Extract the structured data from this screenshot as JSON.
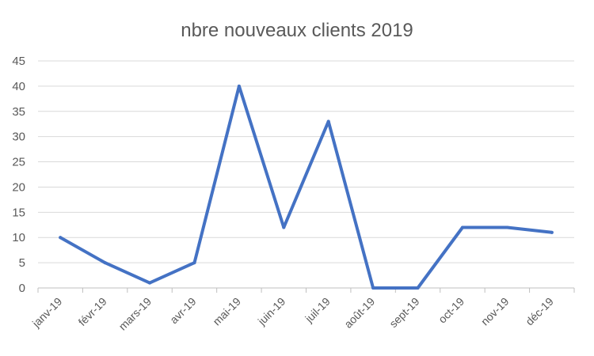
{
  "chart_data": {
    "type": "line",
    "title": "nbre nouveaux clients 2019",
    "xlabel": "",
    "ylabel": "",
    "categories": [
      "janv-19",
      "févr-19",
      "mars-19",
      "avr-19",
      "mai-19",
      "juin-19",
      "juil-19",
      "août-19",
      "sept-19",
      "oct-19",
      "nov-19",
      "déc-19"
    ],
    "yticks": [
      "0",
      "5",
      "10",
      "15",
      "20",
      "25",
      "30",
      "35",
      "40",
      "45"
    ],
    "ylim": [
      0,
      45
    ],
    "grid": true,
    "legend": "none",
    "series": [
      {
        "values": [
          10,
          5,
          1,
          5,
          40,
          12,
          33,
          0,
          0,
          12,
          12,
          11
        ],
        "color": "#4472c4"
      }
    ]
  }
}
